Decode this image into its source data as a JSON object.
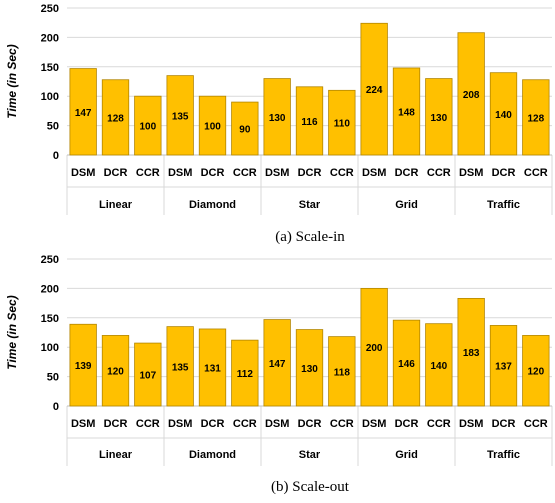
{
  "bar_color": "#FFC000",
  "bar_stroke": "#B38600",
  "grid_color": "#D9D9D9",
  "chart_data": [
    {
      "type": "bar",
      "caption": "(a) Scale-in",
      "ylabel": "Time (in Sec)",
      "ylim": [
        0,
        250
      ],
      "yticks": [
        0,
        50,
        100,
        150,
        200,
        250
      ],
      "grid": true,
      "groups": [
        "Linear",
        "Diamond",
        "Star",
        "Grid",
        "Traffic"
      ],
      "categories": [
        "DSM",
        "DCR",
        "CCR"
      ],
      "values": [
        [
          147,
          128,
          100
        ],
        [
          135,
          100,
          90
        ],
        [
          130,
          116,
          110
        ],
        [
          224,
          148,
          130
        ],
        [
          208,
          140,
          128
        ]
      ]
    },
    {
      "type": "bar",
      "caption": "(b) Scale-out",
      "ylabel": "Time (in Sec)",
      "ylim": [
        0,
        250
      ],
      "yticks": [
        0,
        50,
        100,
        150,
        200,
        250
      ],
      "grid": true,
      "groups": [
        "Linear",
        "Diamond",
        "Star",
        "Grid",
        "Traffic"
      ],
      "categories": [
        "DSM",
        "DCR",
        "CCR"
      ],
      "values": [
        [
          139,
          120,
          107
        ],
        [
          135,
          131,
          112
        ],
        [
          147,
          130,
          118
        ],
        [
          200,
          146,
          140
        ],
        [
          183,
          137,
          120
        ]
      ]
    }
  ]
}
